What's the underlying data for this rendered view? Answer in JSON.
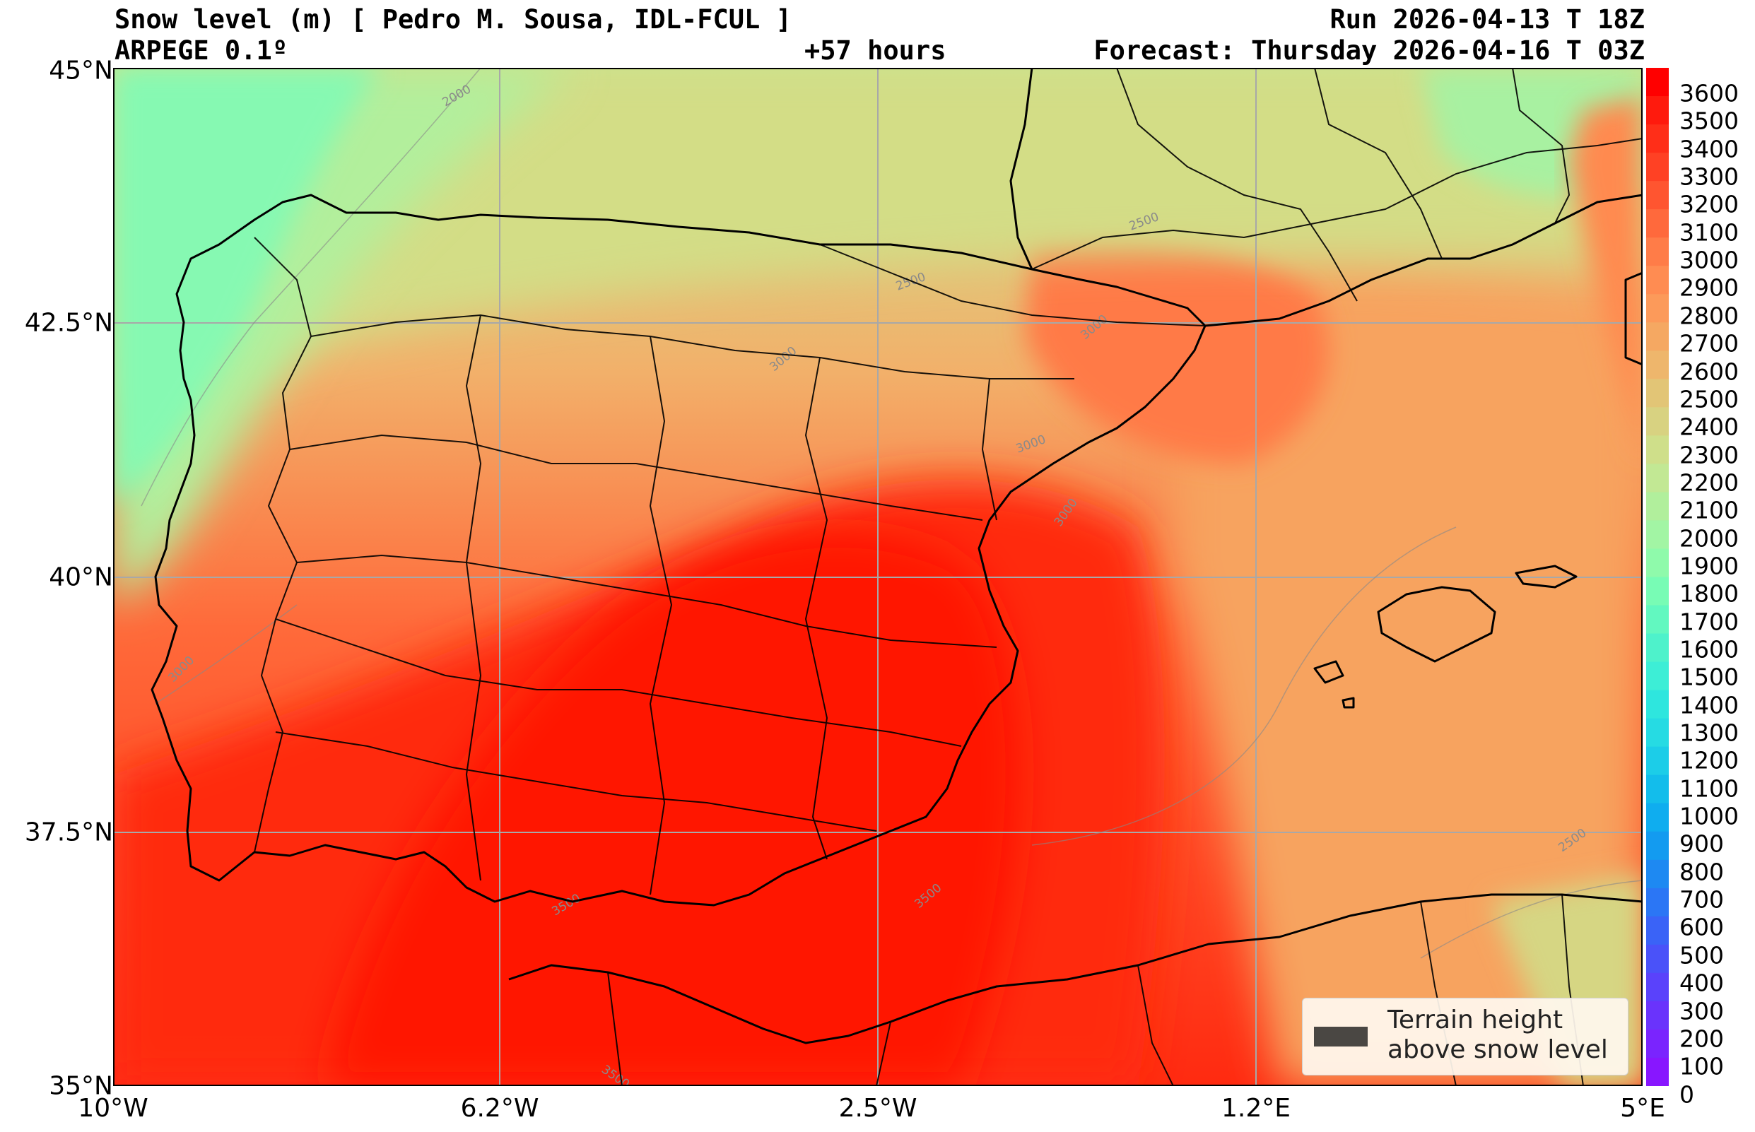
{
  "header": {
    "title": "Snow level (m) [ Pedro M. Sousa, IDL-FCUL ]",
    "model": "ARPEGE 0.1º",
    "lead_time": "+57 hours",
    "run": "Run 2026-04-13 T 18Z",
    "forecast": "Forecast: Thursday 2026-04-16 T 03Z"
  },
  "axes": {
    "lat_labels": [
      "45°N",
      "42.5°N",
      "40°N",
      "37.5°N",
      "35°N"
    ],
    "lon_labels": [
      "10°W",
      "6.2°W",
      "2.5°W",
      "1.2°E",
      "5°E"
    ]
  },
  "colorbar": {
    "labels": [
      "3600",
      "3500",
      "3400",
      "3300",
      "3200",
      "3100",
      "3000",
      "2900",
      "2800",
      "2700",
      "2600",
      "2500",
      "2400",
      "2300",
      "2200",
      "2100",
      "2000",
      "1900",
      "1800",
      "1700",
      "1600",
      "1500",
      "1400",
      "1300",
      "1200",
      "1100",
      "1000",
      "900",
      "800",
      "700",
      "600",
      "500",
      "400",
      "300",
      "200",
      "100",
      "0"
    ],
    "colors_top_to_bottom": [
      "#ff0000",
      "#ff1a0d",
      "#ff2e18",
      "#ff4124",
      "#ff5530",
      "#ff693c",
      "#ff7c48",
      "#ff8c52",
      "#fc9a5a",
      "#f5a862",
      "#eeb66c",
      "#e2c576",
      "#d8d281",
      "#cfdf8a",
      "#c2e894",
      "#b1ef9c",
      "#a2f5a4",
      "#8ffaab",
      "#78fcb5",
      "#62f8c0",
      "#4ef2cb",
      "#3deed6",
      "#2ee6de",
      "#26dbe3",
      "#1ccde8",
      "#13bdeb",
      "#0fadef",
      "#139bf0",
      "#1e89f2",
      "#2b76f5",
      "#3a63f7",
      "#4a52f9",
      "#5a42fb",
      "#6a33fc",
      "#7a24fe",
      "#8816ff"
    ]
  },
  "contour_labels": [
    "2000",
    "2500",
    "2500",
    "3000",
    "3000",
    "3000",
    "3000",
    "3000",
    "3500",
    "3500",
    "3500",
    "2500"
  ],
  "legend": {
    "label": "Terrain height\nabove snow level",
    "swatch_color": "#4a4743"
  },
  "palette": {
    "red": "#ff1f0a",
    "orange": "#f9a25c",
    "yellowgreen": "#d2dd85",
    "lightgreen": "#b4ee9b",
    "aqua": "#86f9b2"
  }
}
